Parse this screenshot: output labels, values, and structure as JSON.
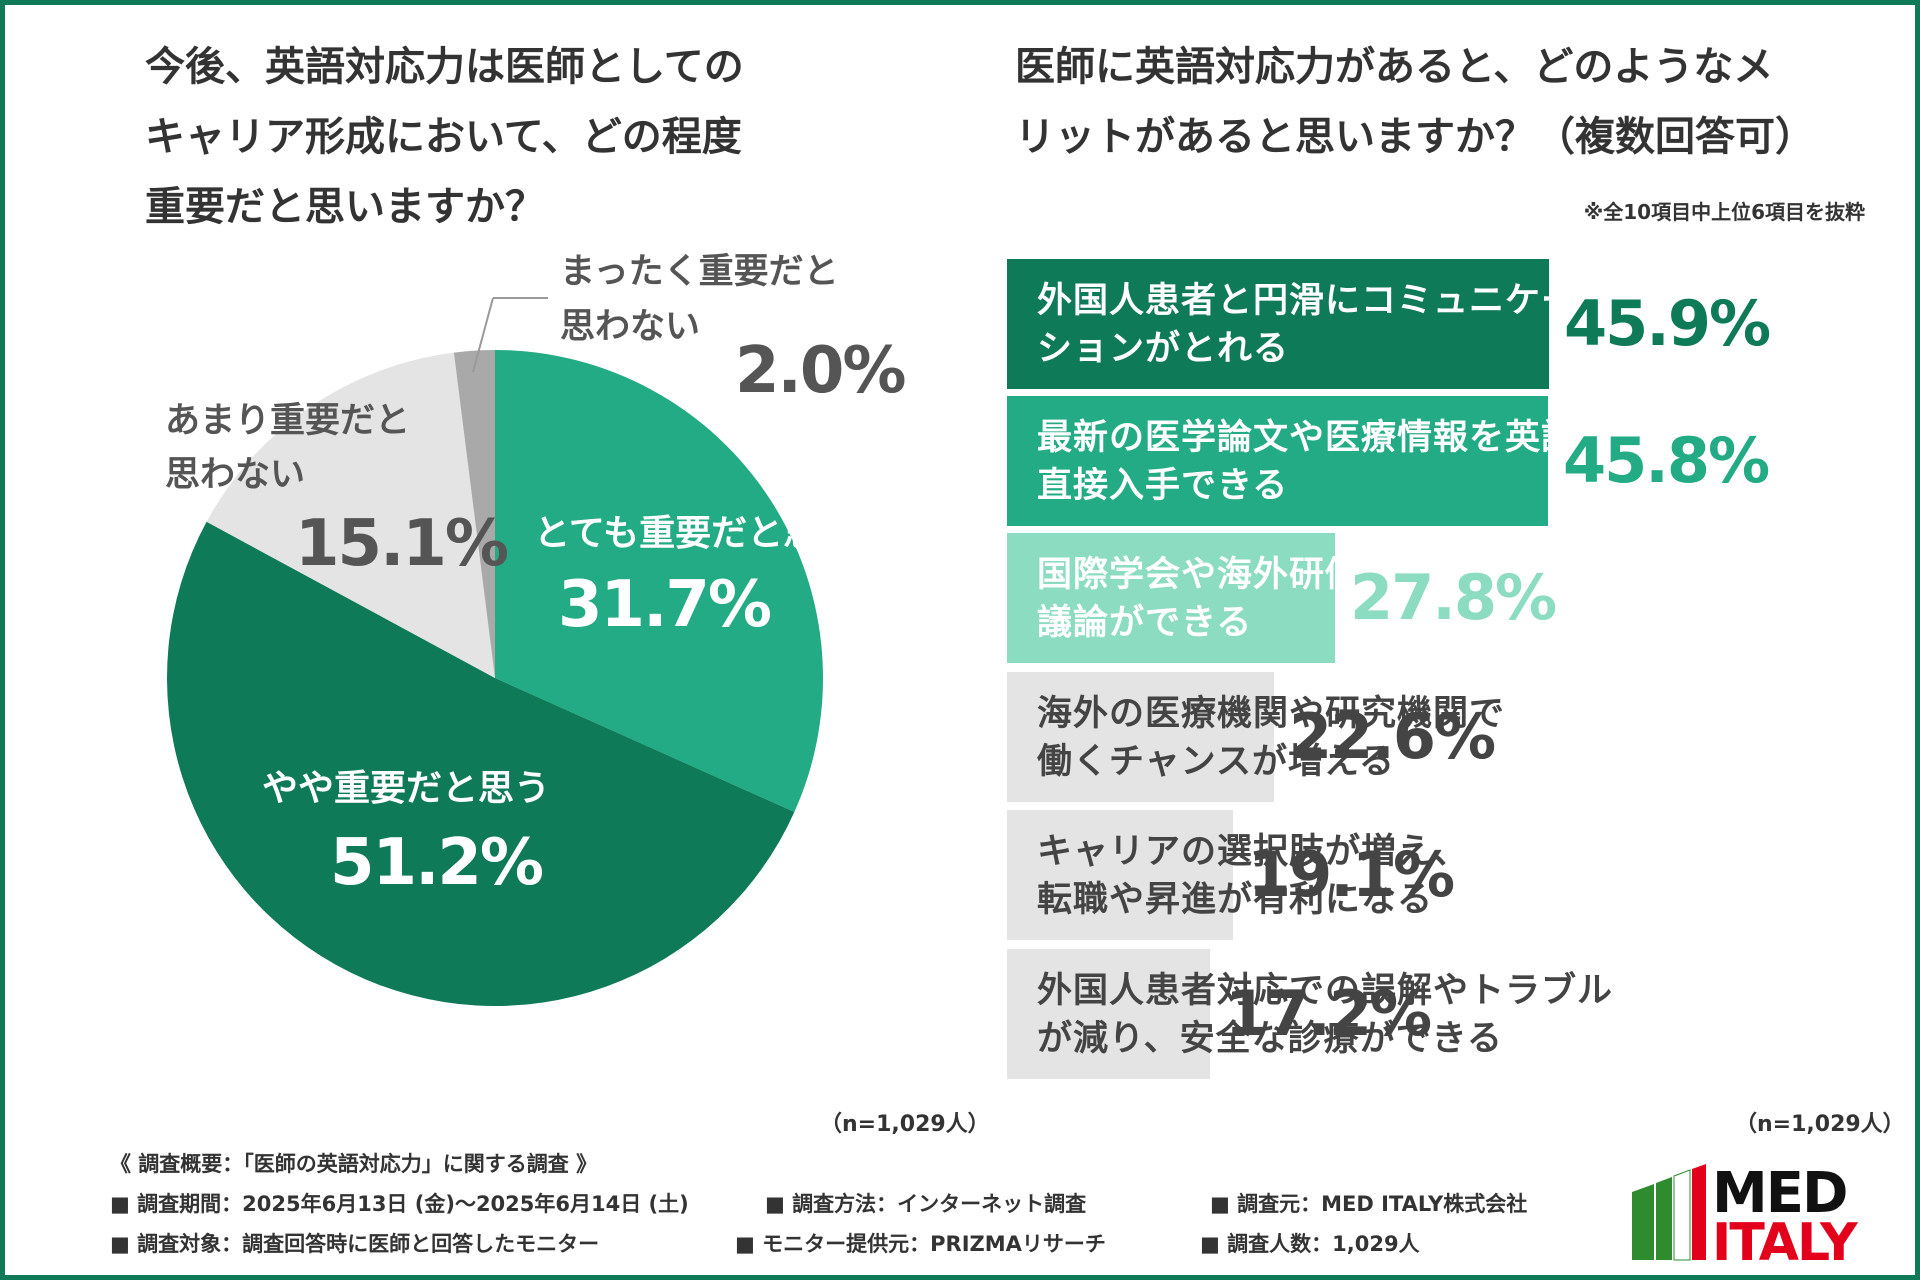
{
  "colors": {
    "very_important": "#22ab84",
    "somewhat_important": "#0f7a57",
    "not_very": "#e4e4e4",
    "not_at_all": "#a9a9a9",
    "bar_dark": "#0f7a57",
    "bar_mid": "#22ab84",
    "bar_light": "#8cdcc2",
    "bar_gray": "#e4e4e4",
    "text_dark": "#444444",
    "logo_green": "#2e8b2e",
    "logo_red": "#e3001b"
  },
  "chart_data": [
    {
      "type": "pie",
      "title": "今後、英語対応力は医師としてのキャリア形成において、どの程度重要だと思いますか？",
      "title_lines": [
        "今後、英語対応力は医師としての",
        "キャリア形成において、どの程度",
        "重要だと思いますか？"
      ],
      "n_label": "（n=1,029人）",
      "slices": [
        {
          "label": "とても重要だと思う",
          "value": 31.7,
          "value_text": "31.7%"
        },
        {
          "label": "やや重要だと思う",
          "value": 51.2,
          "value_text": "51.2%"
        },
        {
          "label_lines": [
            "あまり重要だと",
            "思わない"
          ],
          "value": 15.1,
          "value_text": "15.1%"
        },
        {
          "label_lines": [
            "まったく重要だと",
            "思わない"
          ],
          "value": 2.0,
          "value_text": "2.0%"
        }
      ]
    },
    {
      "type": "bar",
      "title": "医師に英語対応力があると、どのようなメリットがあると思いますか？（複数回答可）",
      "title_lines": [
        "医師に英語対応力があると、どのようなメ",
        "リットがあると思いますか？（複数回答可）"
      ],
      "note": "※全10項目中上位6項目を抜粋",
      "n_label": "（n=1,029人）",
      "xlim": [
        0,
        50
      ],
      "bars": [
        {
          "label_lines": [
            "外国人患者と円滑にコミュニケー",
            "ションがとれる"
          ],
          "value": 45.9,
          "value_text": "45.9%"
        },
        {
          "label_lines": [
            "最新の医学論文や医療情報を英語で",
            "直接入手できる"
          ],
          "value": 45.8,
          "value_text": "45.8%"
        },
        {
          "label_lines": [
            "国際学会や海外研修で発表・",
            "議論ができる"
          ],
          "value": 27.8,
          "value_text": "27.8%"
        },
        {
          "label_lines": [
            "海外の医療機関や研究機関で",
            "働くチャンスが増える"
          ],
          "value": 22.6,
          "value_text": "22.6%"
        },
        {
          "label_lines": [
            "キャリアの選択肢が増え、",
            "転職や昇進が有利になる"
          ],
          "value": 19.1,
          "value_text": "19.1%"
        },
        {
          "label_lines": [
            "外国人患者対応での誤解やトラブル",
            "が減り、安全な診療ができる"
          ],
          "value": 17.2,
          "value_text": "17.2%"
        }
      ]
    }
  ],
  "survey": {
    "heading": "《 調査概要：「医師の英語対応力」に関する調査 》",
    "period": "■ 調査期間：2025年6月13日 (金)〜2025年6月14日 (土)",
    "method": "■ 調査方法：インターネット調査",
    "source": "■ 調査元：MED ITALY株式会社",
    "target": "■ 調査対象：調査回答時に医師と回答したモニター",
    "provider": "■ モニター提供元：PRIZMAリサーチ",
    "count": "■ 調査人数：1,029人"
  },
  "logo": {
    "line1": "MED",
    "line2": "ITALY"
  }
}
